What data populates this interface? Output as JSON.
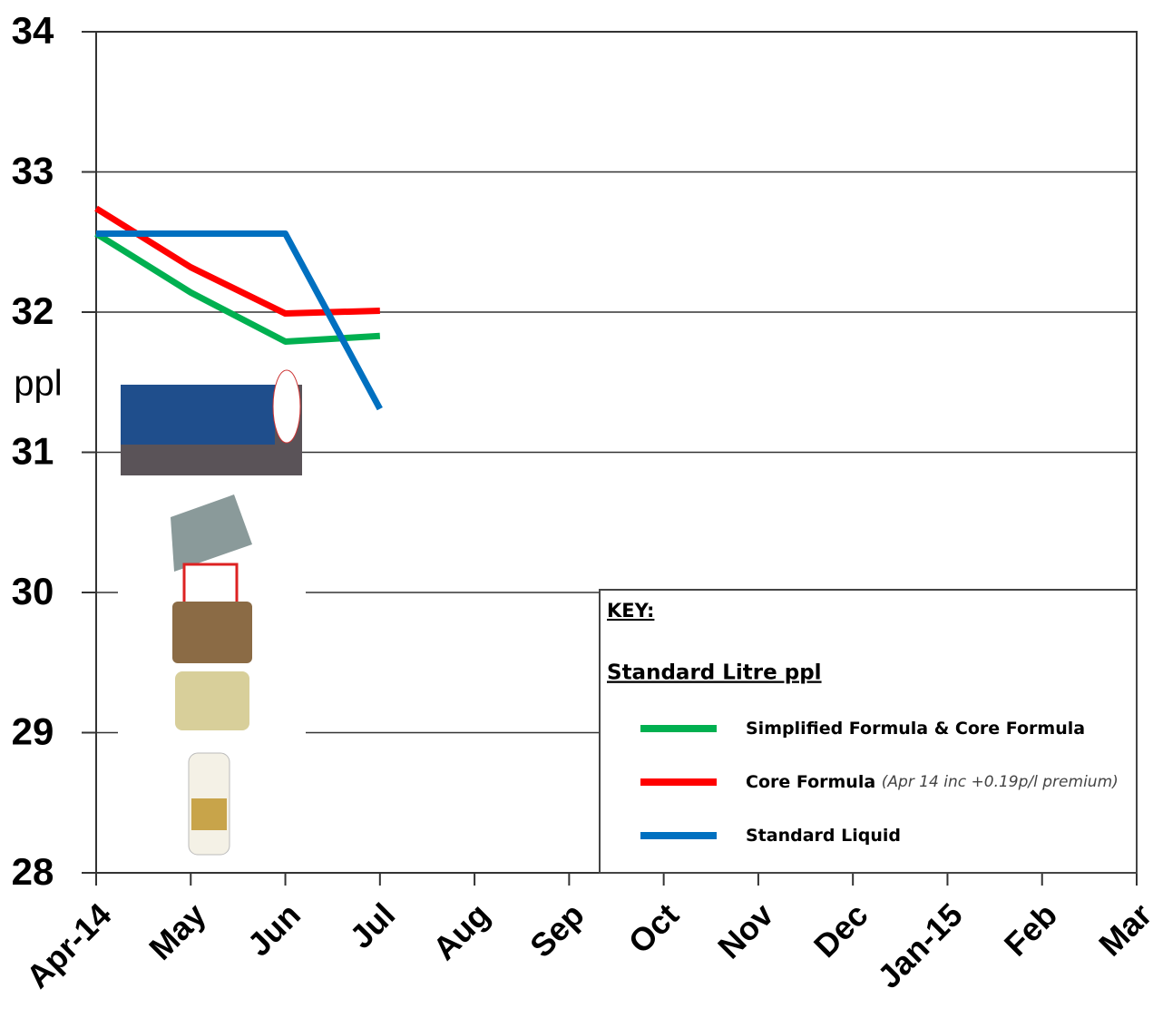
{
  "chart_data": {
    "type": "line",
    "y_label": "ppl",
    "categories": [
      "Apr-14",
      "May",
      "Jun",
      "Jul",
      "Aug",
      "Sep",
      "Oct",
      "Nov",
      "Dec",
      "Jan-15",
      "Feb",
      "Mar"
    ],
    "ylim": [
      28,
      34
    ],
    "yticks": [
      28,
      29,
      30,
      31,
      32,
      33,
      34
    ],
    "grid": true,
    "legend_title": "KEY:",
    "legend_subtitle": "Standard Litre ppl",
    "legend_position": "lower right",
    "series": [
      {
        "name": "Simplified Formula & Core Formula",
        "color": "#00b050",
        "values": [
          32.56,
          32.14,
          31.79,
          31.83,
          null,
          null,
          null,
          null,
          null,
          null,
          null,
          null
        ]
      },
      {
        "name": "Core Formula",
        "note": "(Apr 14 inc +0.19p/l premium)",
        "color": "#ff0000",
        "values": [
          32.74,
          32.32,
          31.99,
          32.01,
          null,
          null,
          null,
          null,
          null,
          null,
          null,
          null
        ]
      },
      {
        "name": "Standard Liquid",
        "color": "#0070c0",
        "values": [
          32.56,
          32.56,
          32.56,
          31.31,
          null,
          null,
          null,
          null,
          null,
          null,
          null,
          null
        ]
      }
    ]
  }
}
